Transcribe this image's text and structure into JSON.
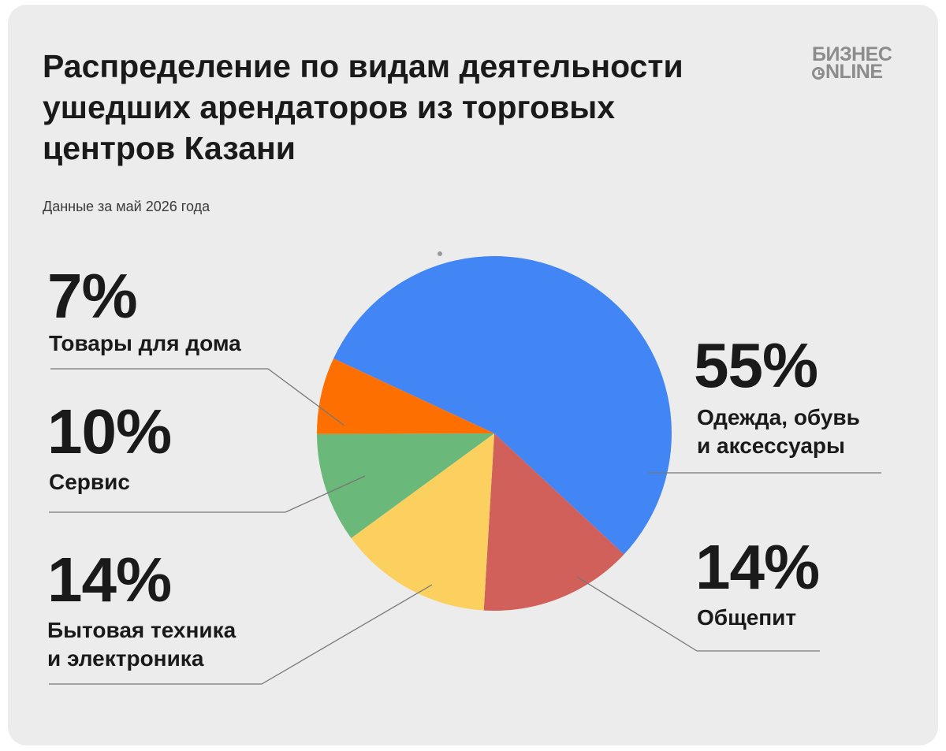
{
  "header": {
    "title": "Распределение по видам деятельности ушедших арендаторов из торговых центров Казани",
    "subtitle": "Данные за май 2026 года"
  },
  "logo": {
    "line1": "БИЗНЕС",
    "line2": "NLINE"
  },
  "colors": {
    "background": "#ececec",
    "leader_line": "#777777"
  },
  "chart_data": {
    "type": "pie",
    "title": "Распределение по видам деятельности ушедших арендаторов из торговых центров Казани",
    "subtitle": "Данные за май 2026 года",
    "start_angle_deg": 295,
    "direction": "clockwise",
    "slices": [
      {
        "label": "Одежда, обувь и аксессуары",
        "label_lines": "Одежда, обувь\nи аксессуары",
        "value": 55,
        "display": "55%",
        "color": "#4285f4"
      },
      {
        "label": "Общепит",
        "label_lines": "Общепит",
        "value": 14,
        "display": "14%",
        "color": "#d1605a"
      },
      {
        "label": "Бытовая техника и электроника",
        "label_lines": "Бытовая техника\nи электроника",
        "value": 14,
        "display": "14%",
        "color": "#fcd05f"
      },
      {
        "label": "Сервис",
        "label_lines": "Сервис",
        "value": 10,
        "display": "10%",
        "color": "#6ab97a"
      },
      {
        "label": "Товары для дома",
        "label_lines": "Товары для дома",
        "value": 7,
        "display": "7%",
        "color": "#fd6f00"
      }
    ]
  }
}
